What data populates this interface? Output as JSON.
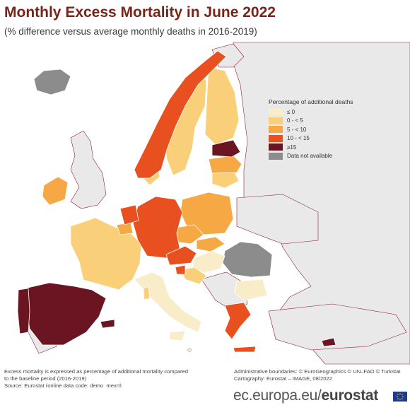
{
  "title": "Monthly Excess Mortality in June 2022",
  "subtitle": "(% difference versus average monthly deaths in 2016-2019)",
  "legend": {
    "title": "Percentage of additional deaths",
    "items": [
      {
        "label": "≤ 0",
        "color": "#f9edc9"
      },
      {
        "label": "0 - < 5",
        "color": "#f9cf7a"
      },
      {
        "label": "5 - < 10",
        "color": "#f5a843"
      },
      {
        "label": "10 - < 15",
        "color": "#e8511f"
      },
      {
        "label": "≥15",
        "color": "#6b1522"
      },
      {
        "label": "Data not available",
        "color": "#8c8c8c"
      }
    ]
  },
  "footer": {
    "note_line1": "Excess mortality is expressed as percentage of additional mortality compared",
    "note_line2": "to the baseline period (2016-2019)",
    "source": "Source: Eurostat (online data code: demo_mexrt)",
    "boundaries": "Administrative boundaries: © EuroGeographics © UN–FAO © Turkstat",
    "cartography": "Cartography: Eurostat – IMAGE, 08/2022"
  },
  "brand": {
    "url": "ec.europa.eu/",
    "name": "eurostat"
  },
  "colors": {
    "title": "#7a2318",
    "sea": "#ffffff",
    "non_eu_land": "#eaeaea",
    "border": "#ffffff",
    "external_border": "#8a1f3a"
  }
}
